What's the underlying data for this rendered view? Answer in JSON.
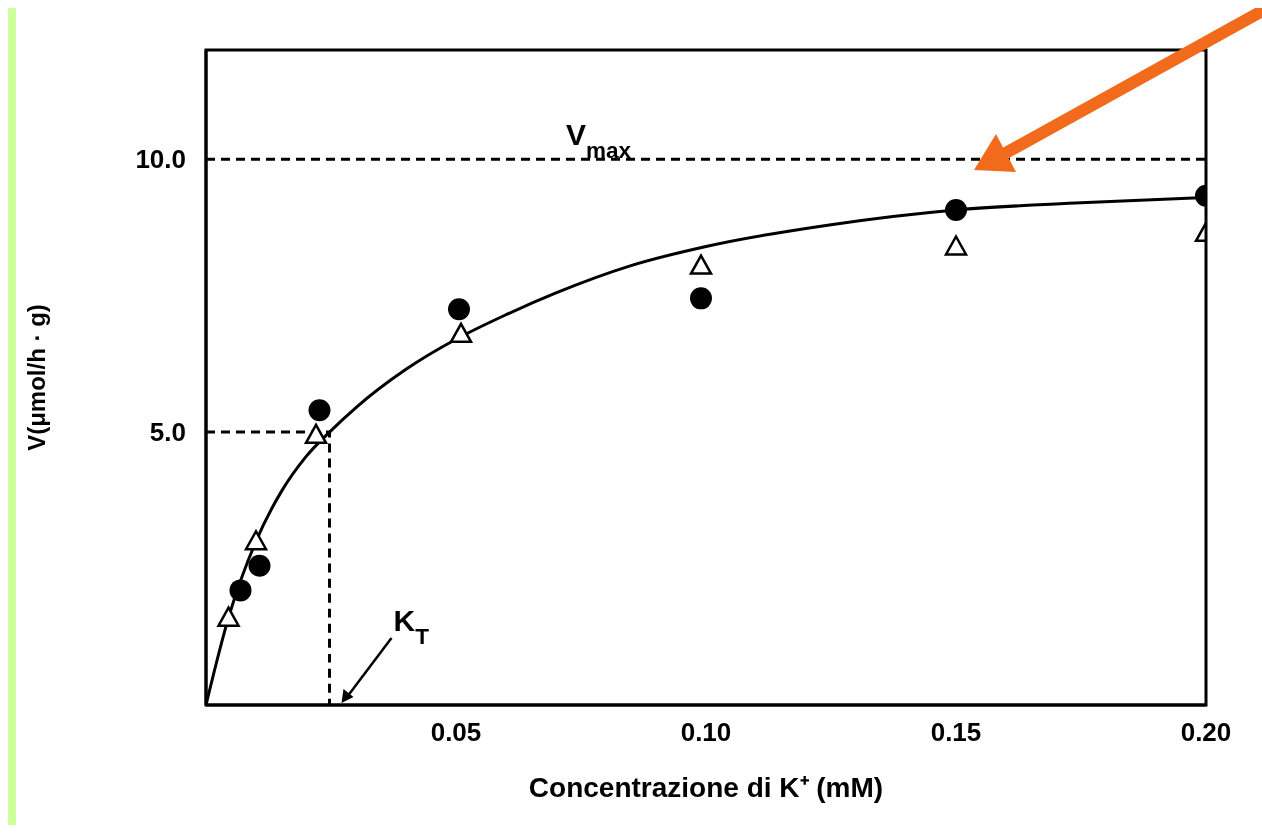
{
  "chart_data": {
    "type": "scatter",
    "xlabel": "Concentrazione di K⁺ (mM)",
    "ylabel": "V(μmol/h · g)",
    "xlim": [
      0,
      0.2
    ],
    "ylim": [
      0,
      12
    ],
    "xticks": [
      {
        "value": 0.05,
        "label": "0.05"
      },
      {
        "value": 0.1,
        "label": "0.10"
      },
      {
        "value": 0.15,
        "label": "0.15"
      },
      {
        "value": 0.2,
        "label": "0.20"
      }
    ],
    "yticks": [
      {
        "value": 5,
        "label": "5.0"
      },
      {
        "value": 10,
        "label": "10.0"
      }
    ],
    "grid": false,
    "legend": false,
    "ref_lines": [
      {
        "axis": "y",
        "value": 10,
        "label": "V$_{max}$",
        "color": "#000000",
        "line_style": "dashed"
      }
    ],
    "annotations": [
      {
        "text": "K$_{T}$",
        "x": 0.0247,
        "y": 0
      }
    ],
    "series": [
      {
        "type": "line",
        "color": "#000000",
        "marker": "none",
        "line_style": "solid",
        "x": [
          0,
          0.0045,
          0.01,
          0.015,
          0.02,
          0.0247,
          0.03,
          0.04,
          0.05,
          0.06,
          0.07,
          0.085,
          0.1,
          0.125,
          0.15,
          0.175,
          0.2
        ],
        "values": [
          0,
          1.6,
          3.0,
          3.9,
          4.55,
          5.0,
          5.45,
          6.15,
          6.7,
          7.15,
          7.55,
          8.05,
          8.4,
          8.8,
          9.07,
          9.2,
          9.3
        ]
      },
      {
        "type": "line",
        "color": "#000000",
        "marker": "none",
        "line_style": "dashed",
        "x": [
          0,
          0.0247,
          0.0247
        ],
        "values": [
          5,
          5,
          0
        ]
      },
      {
        "color": "#000000",
        "marker": "circle",
        "x": [
          0.0069,
          0.0107,
          0.0227,
          0.0506,
          0.099,
          0.15,
          0.2
        ],
        "values": [
          2.1,
          2.55,
          5.4,
          7.25,
          7.45,
          9.07,
          9.33
        ]
      },
      {
        "color": "#000000",
        "marker": "triangle",
        "x": [
          0.0045,
          0.01,
          0.022,
          0.051,
          0.099,
          0.15,
          0.2
        ],
        "values": [
          1.6,
          3.0,
          4.95,
          6.8,
          8.05,
          8.4,
          8.65
        ]
      }
    ]
  }
}
